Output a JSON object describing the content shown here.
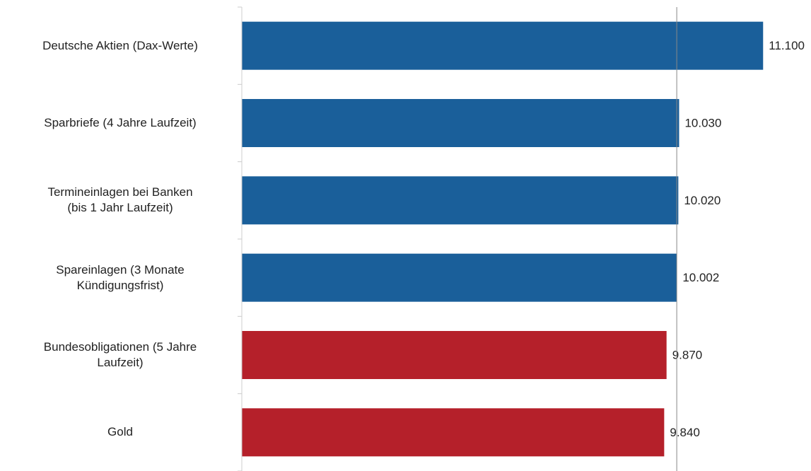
{
  "chart_data": {
    "type": "barh",
    "categories": [
      "Deutsche Aktien (Dax-Werte)",
      "Sparbriefe (4 Jahre Laufzeit)",
      "Termineinlagen bei Banken\n(bis 1 Jahr Laufzeit)",
      "Spareinlagen (3 Monate\nKündigungsfrist)",
      "Bundesobligationen (5 Jahre\nLaufzeit)",
      "Gold"
    ],
    "values": [
      11100,
      10030,
      10020,
      10002,
      9870,
      9840
    ],
    "value_labels": [
      "11.100",
      "10.030",
      "10.020",
      "10.002",
      "9.870",
      "9.840"
    ],
    "colors": [
      "#1a5f9a",
      "#1a5f9a",
      "#1a5f9a",
      "#1a5f9a",
      "#b5202a",
      "#b5202a"
    ],
    "xlim": [
      4460,
      11710
    ],
    "reference_line": 10000
  }
}
